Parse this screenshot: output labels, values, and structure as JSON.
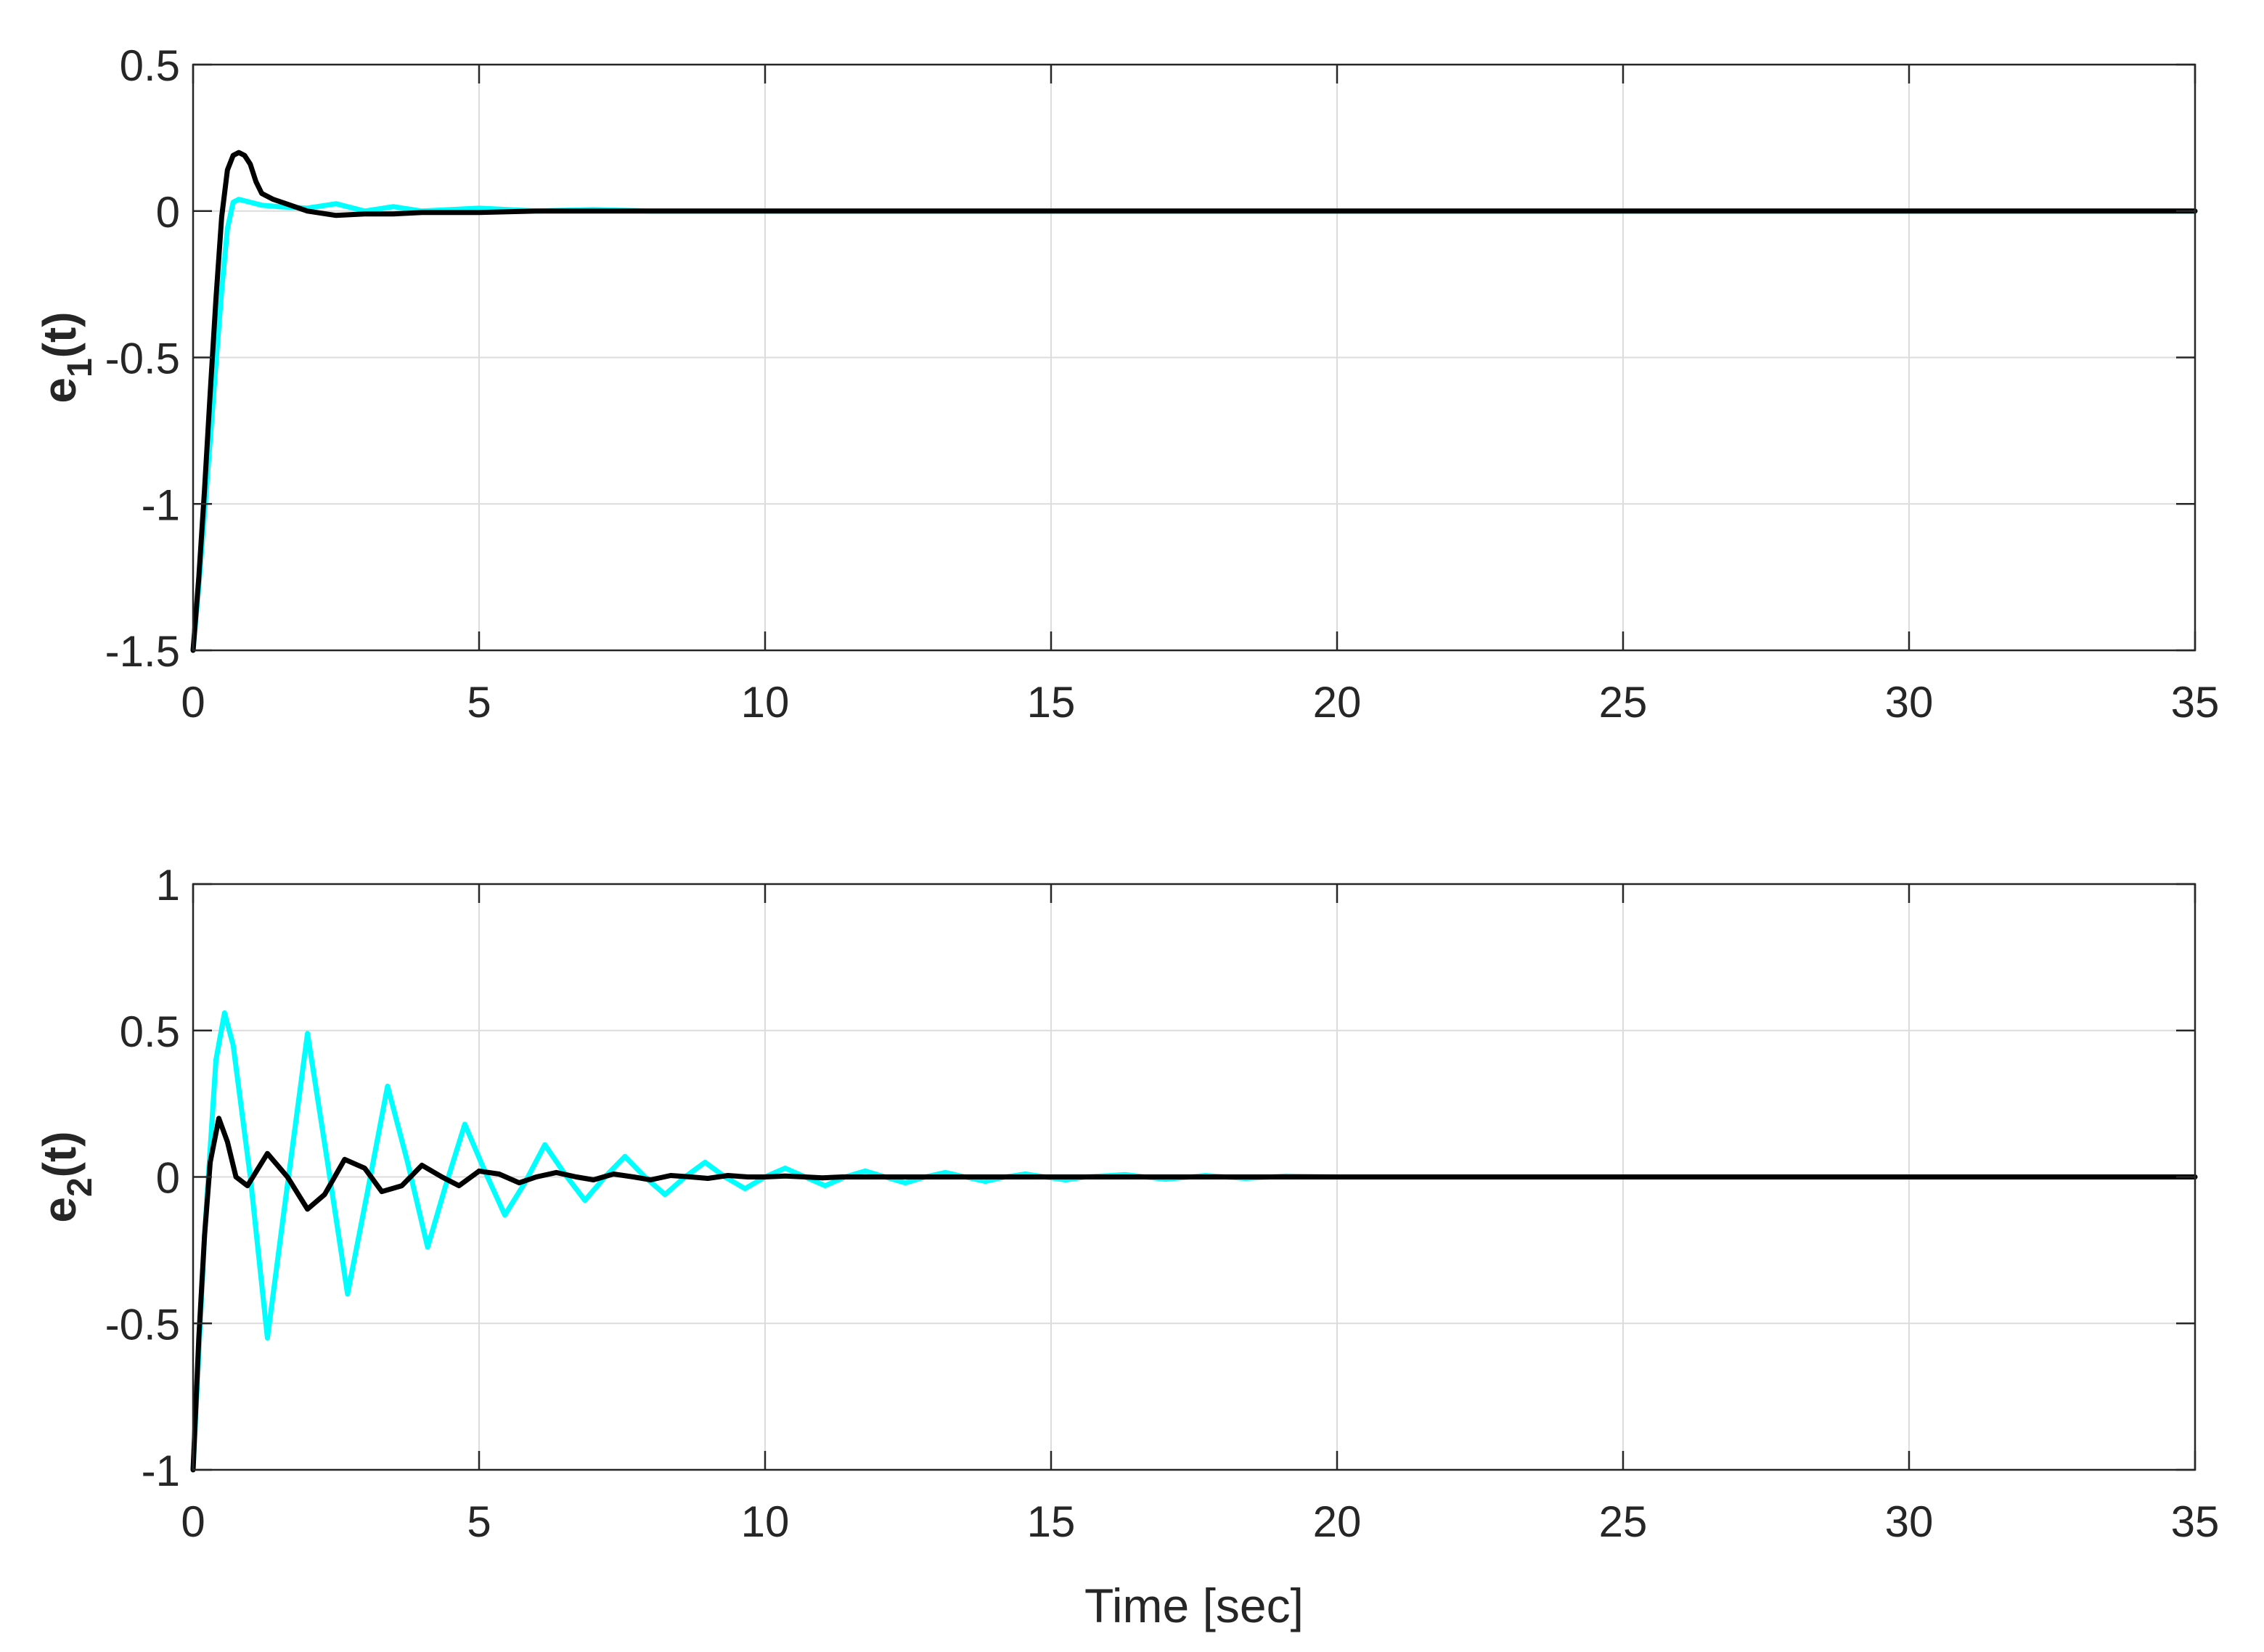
{
  "colors": {
    "series_a": "#00ffff",
    "series_b": "#000000",
    "grid": "#dcdcdc",
    "axis": "#262626"
  },
  "chart_data": [
    {
      "type": "line",
      "ylabel": "e",
      "ylabel_sub": "1",
      "ylabel_suffix": "(t)",
      "xlabel": "",
      "xlim": [
        0,
        35
      ],
      "ylim": [
        -1.5,
        0.5
      ],
      "xticks": [
        0,
        5,
        10,
        15,
        20,
        25,
        30,
        35
      ],
      "xtick_labels": [
        "0",
        "5",
        "10",
        "15",
        "20",
        "25",
        "30",
        "35"
      ],
      "yticks": [
        -1.5,
        -1,
        -0.5,
        0,
        0.5
      ],
      "ytick_labels": [
        "-1.5",
        "-1",
        "-0.5",
        "0",
        "0.5"
      ],
      "grid": true,
      "series": [
        {
          "color": "#00ffff",
          "x": [
            0,
            0.1,
            0.2,
            0.3,
            0.4,
            0.5,
            0.6,
            0.7,
            0.8,
            0.9,
            1.0,
            1.2,
            1.5,
            2.0,
            2.5,
            3.0,
            3.5,
            4.0,
            5.0,
            6.0,
            7.0,
            8.0,
            10.0,
            35.0
          ],
          "y": [
            -1.5,
            -1.28,
            -1.03,
            -0.78,
            -0.52,
            -0.27,
            -0.06,
            0.03,
            0.04,
            0.035,
            0.03,
            0.02,
            0.015,
            0.01,
            0.025,
            0.0,
            0.015,
            0.0,
            0.01,
            0.0,
            0.005,
            0.0,
            0.0,
            0.0
          ]
        },
        {
          "color": "#000000",
          "x": [
            0,
            0.1,
            0.2,
            0.3,
            0.4,
            0.5,
            0.6,
            0.7,
            0.8,
            0.9,
            1.0,
            1.1,
            1.2,
            1.4,
            1.7,
            2.0,
            2.5,
            3.0,
            3.5,
            4.0,
            5.0,
            6.0,
            8.0,
            35.0
          ],
          "y": [
            -1.5,
            -1.25,
            -0.95,
            -0.62,
            -0.3,
            -0.02,
            0.14,
            0.19,
            0.2,
            0.19,
            0.16,
            0.1,
            0.06,
            0.04,
            0.02,
            0.0,
            -0.015,
            -0.01,
            -0.01,
            -0.005,
            -0.005,
            0.0,
            0.0,
            0.0
          ]
        }
      ]
    },
    {
      "type": "line",
      "ylabel": "e",
      "ylabel_sub": "2",
      "ylabel_suffix": "(t)",
      "xlabel": "Time [sec]",
      "xlim": [
        0,
        35
      ],
      "ylim": [
        -1,
        1
      ],
      "xticks": [
        0,
        5,
        10,
        15,
        20,
        25,
        30,
        35
      ],
      "xtick_labels": [
        "0",
        "5",
        "10",
        "15",
        "20",
        "25",
        "30",
        "35"
      ],
      "yticks": [
        -1,
        -0.5,
        0,
        0.5,
        1
      ],
      "ytick_labels": [
        "-1",
        "-0.5",
        "0",
        "0.5",
        "1"
      ],
      "grid": true,
      "series": [
        {
          "color": "#00ffff",
          "x": [
            0,
            0.2,
            0.4,
            0.55,
            0.7,
            1.0,
            1.3,
            1.6,
            2.0,
            2.35,
            2.7,
            3.05,
            3.4,
            3.75,
            4.1,
            4.4,
            4.75,
            5.1,
            5.45,
            5.8,
            6.15,
            6.5,
            6.85,
            7.2,
            7.55,
            7.9,
            8.25,
            8.6,
            8.95,
            9.3,
            9.65,
            10.0,
            10.35,
            10.7,
            11.05,
            11.4,
            11.75,
            12.1,
            12.45,
            12.8,
            13.15,
            13.5,
            13.85,
            14.2,
            14.55,
            14.9,
            15.25,
            15.6,
            16.3,
            17.0,
            17.7,
            18.4,
            19.1,
            20.0,
            35.0
          ],
          "y": [
            -1.0,
            -0.2,
            0.4,
            0.56,
            0.45,
            0.0,
            -0.55,
            -0.1,
            0.49,
            0.05,
            -0.4,
            -0.05,
            0.31,
            0.05,
            -0.24,
            -0.04,
            0.18,
            0.02,
            -0.13,
            -0.02,
            0.11,
            0.01,
            -0.08,
            0.0,
            0.07,
            0.0,
            -0.06,
            0.0,
            0.05,
            0.0,
            -0.04,
            0.0,
            0.03,
            0.0,
            -0.03,
            0.0,
            0.02,
            0.0,
            -0.02,
            0.0,
            0.015,
            0.0,
            -0.015,
            0.0,
            0.01,
            0.0,
            -0.01,
            0.0,
            0.008,
            -0.008,
            0.005,
            -0.005,
            0.003,
            0.0,
            0.0
          ]
        },
        {
          "color": "#000000",
          "x": [
            0,
            0.1,
            0.2,
            0.3,
            0.45,
            0.6,
            0.75,
            0.95,
            1.3,
            1.65,
            2.0,
            2.3,
            2.65,
            3.0,
            3.3,
            3.65,
            4.0,
            4.35,
            4.65,
            5.0,
            5.35,
            5.7,
            6.0,
            6.35,
            6.7,
            7.0,
            7.35,
            7.7,
            8.0,
            8.35,
            8.7,
            9.0,
            9.35,
            9.7,
            10.0,
            10.35,
            10.7,
            11.0,
            11.35,
            12.0,
            13.0,
            14.0,
            15.0,
            35.0
          ],
          "y": [
            -1.0,
            -0.55,
            -0.2,
            0.05,
            0.2,
            0.12,
            0.0,
            -0.03,
            0.08,
            0.0,
            -0.11,
            -0.06,
            0.06,
            0.03,
            -0.05,
            -0.03,
            0.04,
            0.0,
            -0.03,
            0.02,
            0.01,
            -0.02,
            0.0,
            0.015,
            0.0,
            -0.01,
            0.01,
            0.0,
            -0.01,
            0.005,
            0.0,
            -0.005,
            0.005,
            0.0,
            0.0,
            0.003,
            0.0,
            -0.003,
            0.0,
            0.0,
            0.0,
            0.0,
            0.0,
            0.0
          ]
        }
      ]
    }
  ]
}
